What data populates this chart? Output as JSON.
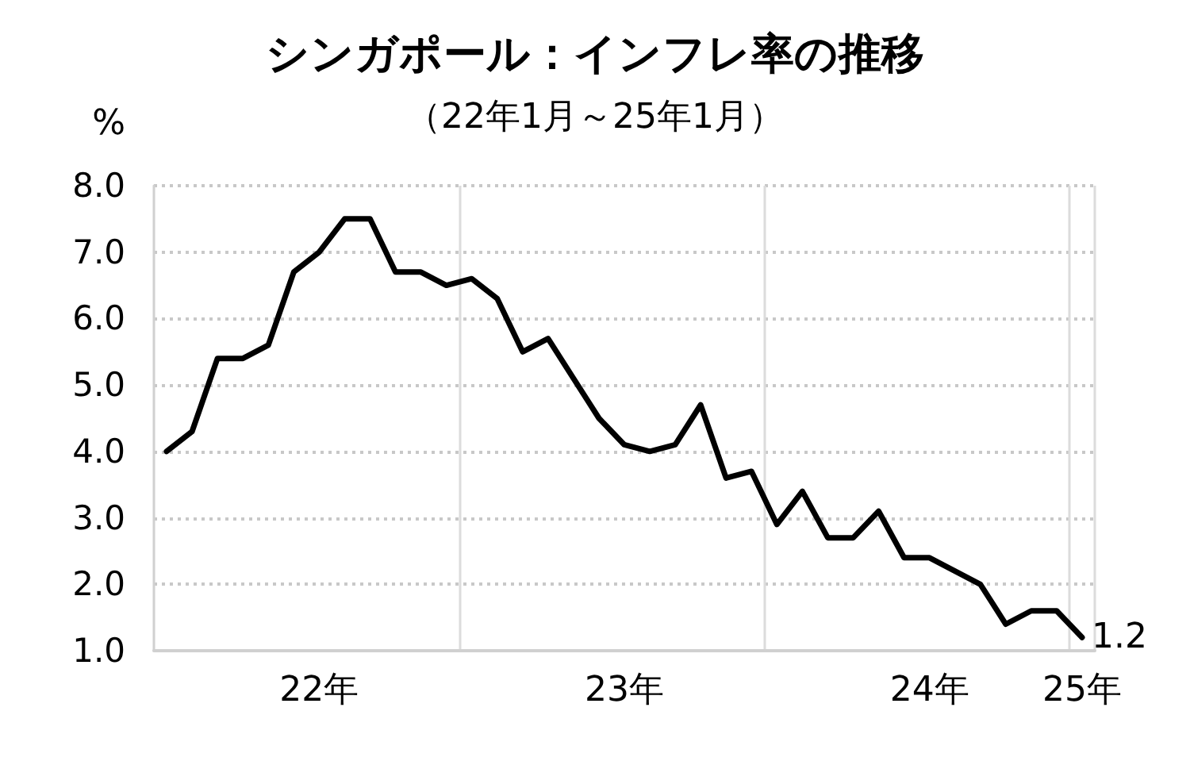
{
  "chart_data": {
    "type": "line",
    "title": "シンガポール：インフレ率の推移",
    "subtitle": "（22年1月～25年1月）",
    "ylabel": "%",
    "categories": [
      null,
      null,
      null,
      null,
      null,
      null,
      "22年",
      null,
      null,
      null,
      null,
      null,
      null,
      null,
      null,
      null,
      null,
      null,
      "23年",
      null,
      null,
      null,
      null,
      null,
      null,
      null,
      null,
      null,
      null,
      null,
      "24年",
      null,
      null,
      null,
      null,
      null,
      "25年"
    ],
    "series": [
      {
        "color": "#000000",
        "values": [
          4.0,
          4.3,
          5.4,
          5.4,
          5.6,
          6.7,
          7.0,
          7.5,
          7.5,
          6.7,
          6.7,
          6.5,
          6.6,
          6.3,
          5.5,
          5.7,
          5.1,
          4.5,
          4.1,
          4.0,
          4.1,
          4.7,
          3.6,
          3.7,
          2.9,
          3.4,
          2.7,
          2.7,
          3.1,
          2.4,
          2.4,
          2.2,
          2.0,
          1.4,
          1.6,
          1.6,
          1.2
        ],
        "value_labels": [
          null,
          null,
          null,
          null,
          null,
          null,
          null,
          null,
          null,
          null,
          null,
          null,
          null,
          null,
          null,
          null,
          null,
          null,
          null,
          null,
          null,
          null,
          null,
          null,
          null,
          null,
          null,
          null,
          null,
          null,
          null,
          null,
          null,
          null,
          null,
          null,
          "1.2"
        ]
      }
    ],
    "ylim": [
      1.0,
      8.0
    ],
    "yticks": [
      {
        "value": 1,
        "label": "1.0"
      },
      {
        "value": 2,
        "label": "2.0"
      },
      {
        "value": 3,
        "label": "3.0"
      },
      {
        "value": 4,
        "label": "4.0"
      },
      {
        "value": 5,
        "label": "5.0"
      },
      {
        "value": 6,
        "label": "6.0"
      },
      {
        "value": 7,
        "label": "7.0"
      },
      {
        "value": 8,
        "label": "8.0"
      }
    ],
    "grid": true,
    "line_style": "solid"
  }
}
